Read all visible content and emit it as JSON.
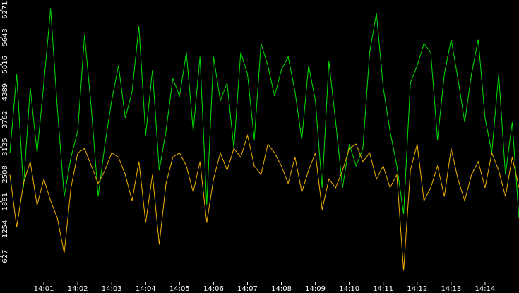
{
  "chart_data": {
    "type": "line",
    "categories": [
      null,
      null,
      null,
      null,
      null,
      "14:01",
      null,
      null,
      null,
      null,
      "14:02",
      null,
      null,
      null,
      null,
      "14:03",
      null,
      null,
      null,
      null,
      "14:04",
      null,
      null,
      null,
      null,
      "14:05",
      null,
      null,
      null,
      null,
      "14:06",
      null,
      null,
      null,
      null,
      "14:07",
      null,
      null,
      null,
      null,
      "14:08",
      null,
      null,
      null,
      null,
      "14:09",
      null,
      null,
      null,
      null,
      "14:10",
      null,
      null,
      null,
      null,
      "14:11",
      null,
      null,
      null,
      null,
      "14:12",
      null,
      null,
      null,
      null,
      "14:13",
      null,
      null,
      null,
      null,
      "14:14",
      null,
      null,
      null,
      null,
      null
    ],
    "series": [
      {
        "color": "#00e000",
        "values": [
          3000,
          4800,
          2200,
          4500,
          3000,
          4600,
          6300,
          4000,
          2000,
          2900,
          3500,
          5700,
          4000,
          2000,
          3200,
          4200,
          5000,
          3800,
          4400,
          5900,
          3400,
          4900,
          2600,
          3500,
          4700,
          4300,
          5300,
          3500,
          5200,
          1800,
          5200,
          4200,
          4600,
          3100,
          5300,
          4800,
          3300,
          5500,
          5000,
          4300,
          4900,
          5200,
          4400,
          3300,
          5000,
          4200,
          2200,
          5100,
          3700,
          2200,
          3200,
          2700,
          3100,
          5300,
          6200,
          4500,
          3500,
          2700,
          1600,
          4600,
          5000,
          5500,
          5300,
          3300,
          4800,
          5600,
          4700,
          3700,
          4800,
          5600,
          3800,
          3000,
          4800,
          2500,
          3700,
          1500
        ]
      },
      {
        "color": "#f0b000",
        "values": [
          2500,
          1300,
          2300,
          2800,
          1800,
          2400,
          1900,
          1500,
          700,
          2200,
          3000,
          3100,
          2700,
          2300,
          2600,
          3000,
          2900,
          2500,
          1900,
          2800,
          1400,
          2500,
          900,
          2300,
          2900,
          3000,
          2700,
          2100,
          2800,
          1400,
          2400,
          3000,
          2600,
          3100,
          2900,
          3400,
          2700,
          2500,
          3200,
          3000,
          2700,
          2300,
          2900,
          2100,
          2600,
          3000,
          1700,
          2400,
          2200,
          2600,
          3100,
          3200,
          2800,
          3000,
          2400,
          2700,
          2200,
          2500,
          300,
          2600,
          3200,
          1900,
          2200,
          2700,
          2000,
          3100,
          2400,
          1900,
          2500,
          2800,
          2200,
          3000,
          2600,
          2000,
          2900,
          2200
        ]
      }
    ],
    "ylim": [
      0,
      6500
    ],
    "yticks": [
      627,
      1254,
      1881,
      2508,
      3135,
      3762,
      4389,
      5016,
      5643,
      6271
    ]
  }
}
